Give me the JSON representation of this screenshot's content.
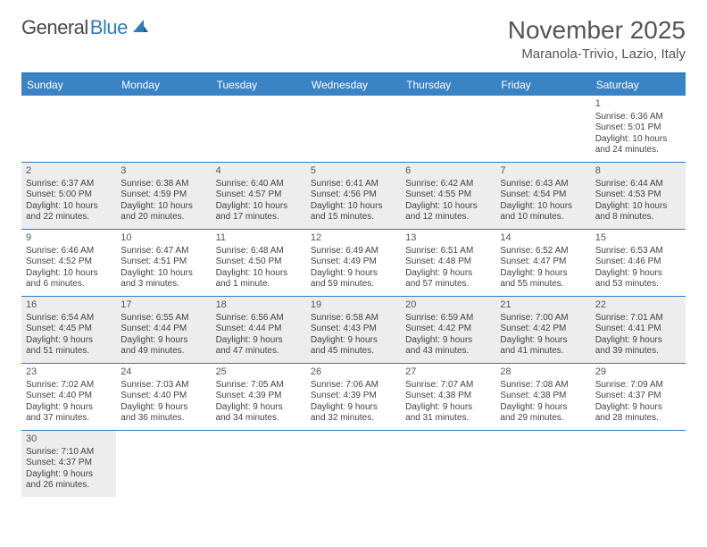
{
  "logo": {
    "text1": "General",
    "text2": "Blue"
  },
  "header": {
    "month_title": "November 2025",
    "location": "Maranola-Trivio, Lazio, Italy"
  },
  "colors": {
    "header_bar": "#3a83c4",
    "border": "#2f7bbf",
    "shaded_bg": "#ededed",
    "text": "#444444",
    "title_text": "#555555"
  },
  "weekdays": [
    "Sunday",
    "Monday",
    "Tuesday",
    "Wednesday",
    "Thursday",
    "Friday",
    "Saturday"
  ],
  "weeks": [
    [
      {
        "blank": true
      },
      {
        "blank": true
      },
      {
        "blank": true
      },
      {
        "blank": true
      },
      {
        "blank": true
      },
      {
        "blank": true
      },
      {
        "num": "1",
        "sunrise": "Sunrise: 6:36 AM",
        "sunset": "Sunset: 5:01 PM",
        "day1": "Daylight: 10 hours",
        "day2": "and 24 minutes."
      }
    ],
    [
      {
        "num": "2",
        "sunrise": "Sunrise: 6:37 AM",
        "sunset": "Sunset: 5:00 PM",
        "day1": "Daylight: 10 hours",
        "day2": "and 22 minutes.",
        "shaded": true
      },
      {
        "num": "3",
        "sunrise": "Sunrise: 6:38 AM",
        "sunset": "Sunset: 4:59 PM",
        "day1": "Daylight: 10 hours",
        "day2": "and 20 minutes.",
        "shaded": true
      },
      {
        "num": "4",
        "sunrise": "Sunrise: 6:40 AM",
        "sunset": "Sunset: 4:57 PM",
        "day1": "Daylight: 10 hours",
        "day2": "and 17 minutes.",
        "shaded": true
      },
      {
        "num": "5",
        "sunrise": "Sunrise: 6:41 AM",
        "sunset": "Sunset: 4:56 PM",
        "day1": "Daylight: 10 hours",
        "day2": "and 15 minutes.",
        "shaded": true
      },
      {
        "num": "6",
        "sunrise": "Sunrise: 6:42 AM",
        "sunset": "Sunset: 4:55 PM",
        "day1": "Daylight: 10 hours",
        "day2": "and 12 minutes.",
        "shaded": true
      },
      {
        "num": "7",
        "sunrise": "Sunrise: 6:43 AM",
        "sunset": "Sunset: 4:54 PM",
        "day1": "Daylight: 10 hours",
        "day2": "and 10 minutes.",
        "shaded": true
      },
      {
        "num": "8",
        "sunrise": "Sunrise: 6:44 AM",
        "sunset": "Sunset: 4:53 PM",
        "day1": "Daylight: 10 hours",
        "day2": "and 8 minutes.",
        "shaded": true
      }
    ],
    [
      {
        "num": "9",
        "sunrise": "Sunrise: 6:46 AM",
        "sunset": "Sunset: 4:52 PM",
        "day1": "Daylight: 10 hours",
        "day2": "and 6 minutes."
      },
      {
        "num": "10",
        "sunrise": "Sunrise: 6:47 AM",
        "sunset": "Sunset: 4:51 PM",
        "day1": "Daylight: 10 hours",
        "day2": "and 3 minutes."
      },
      {
        "num": "11",
        "sunrise": "Sunrise: 6:48 AM",
        "sunset": "Sunset: 4:50 PM",
        "day1": "Daylight: 10 hours",
        "day2": "and 1 minute."
      },
      {
        "num": "12",
        "sunrise": "Sunrise: 6:49 AM",
        "sunset": "Sunset: 4:49 PM",
        "day1": "Daylight: 9 hours",
        "day2": "and 59 minutes."
      },
      {
        "num": "13",
        "sunrise": "Sunrise: 6:51 AM",
        "sunset": "Sunset: 4:48 PM",
        "day1": "Daylight: 9 hours",
        "day2": "and 57 minutes."
      },
      {
        "num": "14",
        "sunrise": "Sunrise: 6:52 AM",
        "sunset": "Sunset: 4:47 PM",
        "day1": "Daylight: 9 hours",
        "day2": "and 55 minutes."
      },
      {
        "num": "15",
        "sunrise": "Sunrise: 6:53 AM",
        "sunset": "Sunset: 4:46 PM",
        "day1": "Daylight: 9 hours",
        "day2": "and 53 minutes."
      }
    ],
    [
      {
        "num": "16",
        "sunrise": "Sunrise: 6:54 AM",
        "sunset": "Sunset: 4:45 PM",
        "day1": "Daylight: 9 hours",
        "day2": "and 51 minutes.",
        "shaded": true
      },
      {
        "num": "17",
        "sunrise": "Sunrise: 6:55 AM",
        "sunset": "Sunset: 4:44 PM",
        "day1": "Daylight: 9 hours",
        "day2": "and 49 minutes.",
        "shaded": true
      },
      {
        "num": "18",
        "sunrise": "Sunrise: 6:56 AM",
        "sunset": "Sunset: 4:44 PM",
        "day1": "Daylight: 9 hours",
        "day2": "and 47 minutes.",
        "shaded": true
      },
      {
        "num": "19",
        "sunrise": "Sunrise: 6:58 AM",
        "sunset": "Sunset: 4:43 PM",
        "day1": "Daylight: 9 hours",
        "day2": "and 45 minutes.",
        "shaded": true
      },
      {
        "num": "20",
        "sunrise": "Sunrise: 6:59 AM",
        "sunset": "Sunset: 4:42 PM",
        "day1": "Daylight: 9 hours",
        "day2": "and 43 minutes.",
        "shaded": true
      },
      {
        "num": "21",
        "sunrise": "Sunrise: 7:00 AM",
        "sunset": "Sunset: 4:42 PM",
        "day1": "Daylight: 9 hours",
        "day2": "and 41 minutes.",
        "shaded": true
      },
      {
        "num": "22",
        "sunrise": "Sunrise: 7:01 AM",
        "sunset": "Sunset: 4:41 PM",
        "day1": "Daylight: 9 hours",
        "day2": "and 39 minutes.",
        "shaded": true
      }
    ],
    [
      {
        "num": "23",
        "sunrise": "Sunrise: 7:02 AM",
        "sunset": "Sunset: 4:40 PM",
        "day1": "Daylight: 9 hours",
        "day2": "and 37 minutes."
      },
      {
        "num": "24",
        "sunrise": "Sunrise: 7:03 AM",
        "sunset": "Sunset: 4:40 PM",
        "day1": "Daylight: 9 hours",
        "day2": "and 36 minutes."
      },
      {
        "num": "25",
        "sunrise": "Sunrise: 7:05 AM",
        "sunset": "Sunset: 4:39 PM",
        "day1": "Daylight: 9 hours",
        "day2": "and 34 minutes."
      },
      {
        "num": "26",
        "sunrise": "Sunrise: 7:06 AM",
        "sunset": "Sunset: 4:39 PM",
        "day1": "Daylight: 9 hours",
        "day2": "and 32 minutes."
      },
      {
        "num": "27",
        "sunrise": "Sunrise: 7:07 AM",
        "sunset": "Sunset: 4:38 PM",
        "day1": "Daylight: 9 hours",
        "day2": "and 31 minutes."
      },
      {
        "num": "28",
        "sunrise": "Sunrise: 7:08 AM",
        "sunset": "Sunset: 4:38 PM",
        "day1": "Daylight: 9 hours",
        "day2": "and 29 minutes."
      },
      {
        "num": "29",
        "sunrise": "Sunrise: 7:09 AM",
        "sunset": "Sunset: 4:37 PM",
        "day1": "Daylight: 9 hours",
        "day2": "and 28 minutes."
      }
    ],
    [
      {
        "num": "30",
        "sunrise": "Sunrise: 7:10 AM",
        "sunset": "Sunset: 4:37 PM",
        "day1": "Daylight: 9 hours",
        "day2": "and 26 minutes.",
        "shaded": true
      },
      {
        "blank": true
      },
      {
        "blank": true
      },
      {
        "blank": true
      },
      {
        "blank": true
      },
      {
        "blank": true
      },
      {
        "blank": true
      }
    ]
  ]
}
